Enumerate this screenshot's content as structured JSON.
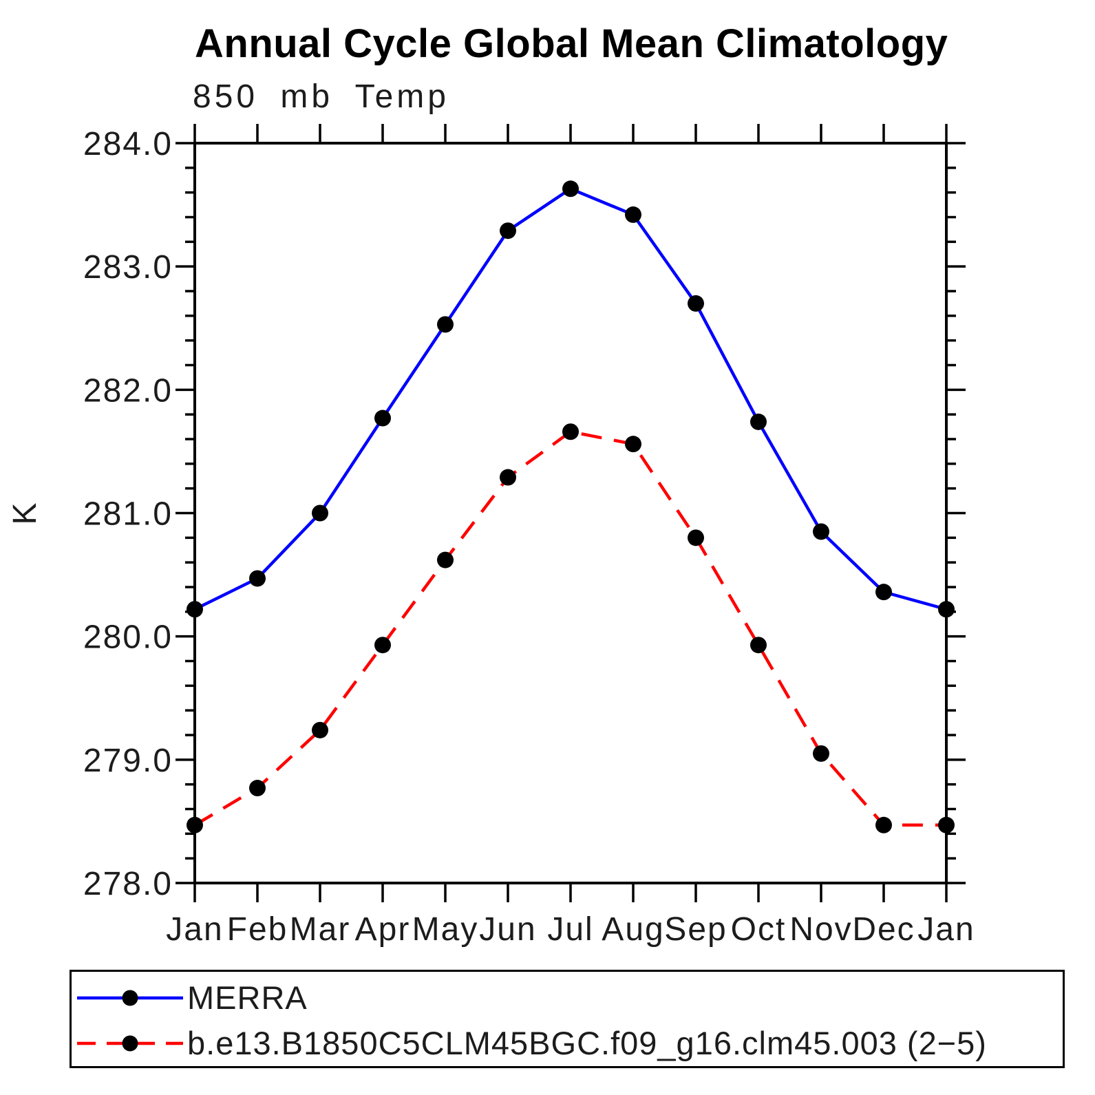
{
  "page": {
    "background_color": "#ffffff",
    "axis_color": "#000000",
    "text_color": "#1c1c1c"
  },
  "header": {
    "title": "Annual Cycle Global Mean Climatology",
    "subtitle": "850 mb Temp"
  },
  "chart_data": {
    "type": "line",
    "title": "Annual Cycle Global Mean Climatology",
    "subtitle": "850 mb Temp",
    "xlabel": "",
    "ylabel": "K",
    "categories": [
      "Jan",
      "Feb",
      "Mar",
      "Apr",
      "May",
      "Jun",
      "Jul",
      "Aug",
      "Sep",
      "Oct",
      "Nov",
      "Dec",
      "Jan"
    ],
    "ylim": [
      278.0,
      284.0
    ],
    "ytick_interval": 1.0,
    "yminor_interval": 0.2,
    "ytick_labels": [
      "278.0",
      "279.0",
      "280.0",
      "281.0",
      "282.0",
      "283.0",
      "284.0"
    ],
    "grid": false,
    "legend_position": "bottom-left",
    "series": [
      {
        "name": "MERRA",
        "color": "#0000ff",
        "line_style": "solid",
        "marker": "circle",
        "marker_color": "#000000",
        "values": [
          280.22,
          280.47,
          281.0,
          281.77,
          282.53,
          283.29,
          283.63,
          283.42,
          282.7,
          281.74,
          280.85,
          280.36,
          280.22
        ]
      },
      {
        "name": "b.e13.B1850C5CLM45BGC.f09_g16.clm45.003 (2−5)",
        "color": "#ff0000",
        "line_style": "dashed",
        "marker": "circle",
        "marker_color": "#000000",
        "values": [
          278.47,
          278.77,
          279.24,
          279.93,
          280.62,
          281.29,
          281.66,
          281.56,
          280.8,
          279.93,
          279.05,
          278.47,
          278.47
        ]
      }
    ]
  }
}
